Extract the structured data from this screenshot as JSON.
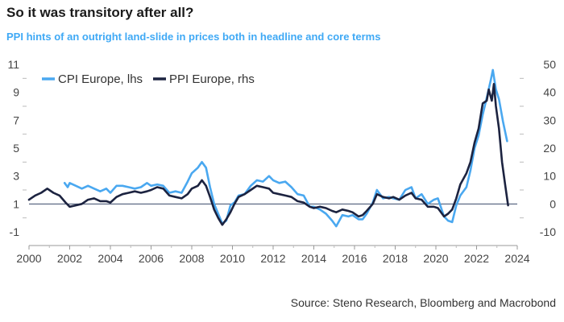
{
  "chart_data": {
    "type": "line",
    "title": "So it was transitory after all?",
    "subtitle": "PPI hints of an outright land-slide in prices both in headline and core terms",
    "source": "Source: Steno Research, Bloomberg and Macrobond",
    "x_axis": {
      "range": [
        2000,
        2024
      ],
      "ticks": [
        2000,
        2002,
        2004,
        2006,
        2008,
        2010,
        2012,
        2014,
        2016,
        2018,
        2020,
        2022,
        2024
      ]
    },
    "y_left": {
      "range": [
        -1,
        11
      ],
      "ticks": [
        -1,
        1,
        3,
        5,
        7,
        9,
        11
      ]
    },
    "y_right": {
      "range": [
        -10,
        50
      ],
      "ticks": [
        -10,
        0,
        10,
        20,
        30,
        40,
        50
      ]
    },
    "baseline_right": 0,
    "series": [
      {
        "name": "CPI Europe, lhs",
        "axis": "left",
        "color": "#4aa8f0",
        "points": [
          [
            2001.75,
            2.5
          ],
          [
            2001.9,
            2.2
          ],
          [
            2002.0,
            2.5
          ],
          [
            2002.3,
            2.3
          ],
          [
            2002.6,
            2.1
          ],
          [
            2002.9,
            2.3
          ],
          [
            2003.2,
            2.1
          ],
          [
            2003.5,
            1.9
          ],
          [
            2003.8,
            2.1
          ],
          [
            2004.0,
            1.8
          ],
          [
            2004.3,
            2.3
          ],
          [
            2004.6,
            2.3
          ],
          [
            2004.9,
            2.2
          ],
          [
            2005.2,
            2.1
          ],
          [
            2005.5,
            2.2
          ],
          [
            2005.8,
            2.5
          ],
          [
            2006.0,
            2.3
          ],
          [
            2006.3,
            2.4
          ],
          [
            2006.6,
            2.3
          ],
          [
            2006.9,
            1.8
          ],
          [
            2007.2,
            1.9
          ],
          [
            2007.5,
            1.8
          ],
          [
            2007.8,
            2.6
          ],
          [
            2008.0,
            3.2
          ],
          [
            2008.3,
            3.6
          ],
          [
            2008.5,
            4.0
          ],
          [
            2008.7,
            3.6
          ],
          [
            2008.9,
            2.2
          ],
          [
            2009.1,
            1.0
          ],
          [
            2009.3,
            0.3
          ],
          [
            2009.5,
            -0.4
          ],
          [
            2009.7,
            -0.2
          ],
          [
            2009.9,
            0.9
          ],
          [
            2010.1,
            1.1
          ],
          [
            2010.3,
            1.6
          ],
          [
            2010.6,
            1.7
          ],
          [
            2010.9,
            2.3
          ],
          [
            2011.2,
            2.7
          ],
          [
            2011.5,
            2.6
          ],
          [
            2011.8,
            3.0
          ],
          [
            2012.0,
            2.7
          ],
          [
            2012.3,
            2.5
          ],
          [
            2012.6,
            2.6
          ],
          [
            2012.9,
            2.2
          ],
          [
            2013.2,
            1.7
          ],
          [
            2013.5,
            1.6
          ],
          [
            2013.8,
            0.8
          ],
          [
            2014.0,
            0.8
          ],
          [
            2014.3,
            0.6
          ],
          [
            2014.6,
            0.3
          ],
          [
            2014.9,
            -0.2
          ],
          [
            2015.1,
            -0.6
          ],
          [
            2015.4,
            0.2
          ],
          [
            2015.7,
            0.1
          ],
          [
            2015.9,
            0.2
          ],
          [
            2016.2,
            -0.1
          ],
          [
            2016.4,
            -0.1
          ],
          [
            2016.6,
            0.3
          ],
          [
            2016.9,
            1.1
          ],
          [
            2017.1,
            2.0
          ],
          [
            2017.4,
            1.4
          ],
          [
            2017.7,
            1.5
          ],
          [
            2017.9,
            1.4
          ],
          [
            2018.2,
            1.3
          ],
          [
            2018.5,
            2.0
          ],
          [
            2018.8,
            2.2
          ],
          [
            2019.0,
            1.4
          ],
          [
            2019.3,
            1.7
          ],
          [
            2019.6,
            1.0
          ],
          [
            2019.9,
            1.3
          ],
          [
            2020.1,
            1.4
          ],
          [
            2020.4,
            0.1
          ],
          [
            2020.6,
            -0.2
          ],
          [
            2020.8,
            -0.3
          ],
          [
            2021.0,
            0.9
          ],
          [
            2021.2,
            1.6
          ],
          [
            2021.5,
            2.2
          ],
          [
            2021.7,
            3.4
          ],
          [
            2021.9,
            5.0
          ],
          [
            2022.1,
            5.9
          ],
          [
            2022.3,
            7.4
          ],
          [
            2022.5,
            8.6
          ],
          [
            2022.7,
            9.9
          ],
          [
            2022.8,
            10.6
          ],
          [
            2022.95,
            9.2
          ],
          [
            2023.1,
            8.5
          ],
          [
            2023.3,
            6.9
          ],
          [
            2023.5,
            5.5
          ]
        ]
      },
      {
        "name": "PPI Europe, rhs",
        "axis": "right",
        "color": "#1c2340",
        "points": [
          [
            2000.0,
            1.5
          ],
          [
            2000.3,
            3.0
          ],
          [
            2000.6,
            4.0
          ],
          [
            2000.9,
            5.5
          ],
          [
            2001.2,
            4.0
          ],
          [
            2001.5,
            3.0
          ],
          [
            2001.8,
            0.5
          ],
          [
            2002.0,
            -1.0
          ],
          [
            2002.3,
            -0.5
          ],
          [
            2002.6,
            0.0
          ],
          [
            2002.9,
            1.5
          ],
          [
            2003.2,
            2.0
          ],
          [
            2003.5,
            1.0
          ],
          [
            2003.8,
            1.0
          ],
          [
            2004.0,
            0.5
          ],
          [
            2004.3,
            2.5
          ],
          [
            2004.6,
            3.5
          ],
          [
            2004.9,
            4.0
          ],
          [
            2005.2,
            4.5
          ],
          [
            2005.5,
            4.0
          ],
          [
            2005.8,
            4.5
          ],
          [
            2006.0,
            5.0
          ],
          [
            2006.3,
            6.0
          ],
          [
            2006.6,
            5.5
          ],
          [
            2006.9,
            3.0
          ],
          [
            2007.2,
            2.5
          ],
          [
            2007.5,
            2.0
          ],
          [
            2007.8,
            3.5
          ],
          [
            2008.0,
            5.5
          ],
          [
            2008.3,
            6.5
          ],
          [
            2008.5,
            8.5
          ],
          [
            2008.7,
            6.5
          ],
          [
            2008.9,
            2.5
          ],
          [
            2009.1,
            -2.0
          ],
          [
            2009.3,
            -5.0
          ],
          [
            2009.5,
            -7.5
          ],
          [
            2009.7,
            -5.5
          ],
          [
            2009.9,
            -3.0
          ],
          [
            2010.1,
            0.0
          ],
          [
            2010.3,
            2.5
          ],
          [
            2010.6,
            3.5
          ],
          [
            2010.9,
            5.0
          ],
          [
            2011.2,
            6.5
          ],
          [
            2011.5,
            6.0
          ],
          [
            2011.8,
            5.5
          ],
          [
            2012.0,
            4.0
          ],
          [
            2012.3,
            3.5
          ],
          [
            2012.6,
            3.0
          ],
          [
            2012.9,
            2.5
          ],
          [
            2013.2,
            1.0
          ],
          [
            2013.5,
            0.5
          ],
          [
            2013.8,
            -1.0
          ],
          [
            2014.0,
            -1.5
          ],
          [
            2014.3,
            -1.0
          ],
          [
            2014.6,
            -1.5
          ],
          [
            2014.9,
            -2.5
          ],
          [
            2015.1,
            -3.0
          ],
          [
            2015.4,
            -2.0
          ],
          [
            2015.7,
            -2.5
          ],
          [
            2015.9,
            -3.0
          ],
          [
            2016.2,
            -4.5
          ],
          [
            2016.4,
            -4.0
          ],
          [
            2016.6,
            -2.5
          ],
          [
            2016.9,
            0.0
          ],
          [
            2017.1,
            3.5
          ],
          [
            2017.4,
            2.5
          ],
          [
            2017.7,
            2.0
          ],
          [
            2017.9,
            2.5
          ],
          [
            2018.2,
            1.5
          ],
          [
            2018.5,
            3.0
          ],
          [
            2018.8,
            4.0
          ],
          [
            2019.0,
            2.0
          ],
          [
            2019.3,
            1.5
          ],
          [
            2019.6,
            -1.0
          ],
          [
            2019.9,
            -1.0
          ],
          [
            2020.1,
            -1.5
          ],
          [
            2020.4,
            -4.5
          ],
          [
            2020.6,
            -3.5
          ],
          [
            2020.8,
            -2.0
          ],
          [
            2021.0,
            2.0
          ],
          [
            2021.2,
            7.0
          ],
          [
            2021.5,
            11.0
          ],
          [
            2021.7,
            15.0
          ],
          [
            2021.9,
            22.0
          ],
          [
            2022.1,
            27.0
          ],
          [
            2022.3,
            36.0
          ],
          [
            2022.5,
            37.0
          ],
          [
            2022.6,
            41.0
          ],
          [
            2022.75,
            37.0
          ],
          [
            2022.85,
            43.0
          ],
          [
            2022.95,
            35.0
          ],
          [
            2023.1,
            27.0
          ],
          [
            2023.25,
            15.0
          ],
          [
            2023.4,
            7.0
          ],
          [
            2023.55,
            -0.5
          ]
        ]
      }
    ],
    "legend": [
      "CPI Europe, lhs",
      "PPI Europe, rhs"
    ]
  }
}
